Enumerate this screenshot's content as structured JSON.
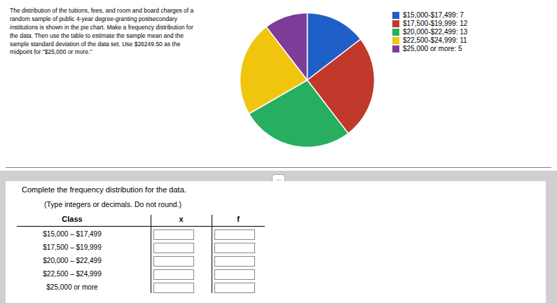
{
  "chart_data": {
    "type": "pie",
    "categories": [
      "$15,000-$17,499: 7",
      "$17,500-$19,999: 12",
      "$20,000-$22,499: 13",
      "$22,500-$24,999: 11",
      "$25,000 or more: 5"
    ],
    "values": [
      7,
      12,
      13,
      11,
      5
    ],
    "colors": [
      "#1f5fc7",
      "#c0392b",
      "#27ae60",
      "#f1c40f",
      "#7d3c98"
    ],
    "legend": "right",
    "annotations": [
      "The distribution of the tuitions, fees, and room and board charges of a\nrandom sample of public 4-year degree-granting postsecondary\ninstitutions is shown in the pie chart. Make a frequency distribution for\nthe data. Then use the table to estimate the sample mean and the\nsample standard deviation of the data set. Use $26249.50 as the\nmidpoint for \"$25,000 or more.\"",
      "...",
      "Complete the frequency distribution for the data.",
      "(Type integers or decimals. Do not round.)"
    ],
    "table": {
      "columns": [
        "Class",
        "x",
        "f"
      ],
      "rows": [
        "$15,000 – $17,499",
        "$17,500 – $19,999",
        "$20,000 – $22,499",
        "$22,500 – $24,999",
        "$25,000 or more"
      ]
    }
  }
}
